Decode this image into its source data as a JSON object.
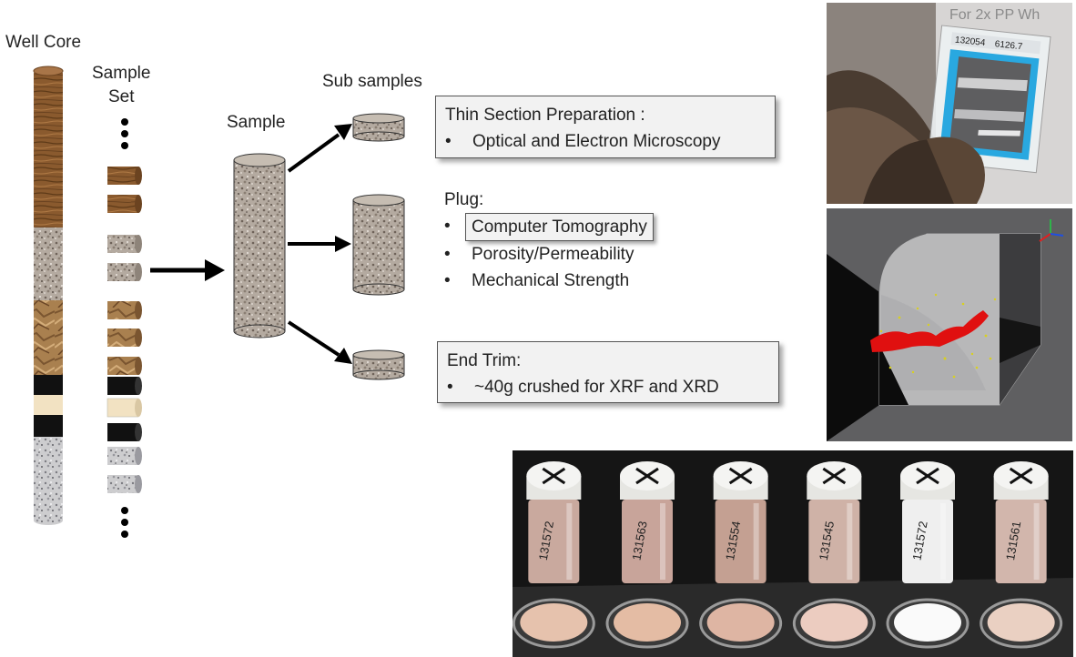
{
  "labels": {
    "well_core": "Well Core",
    "sample_set_line1": "Sample",
    "sample_set_line2": "Set",
    "sample": "Sample",
    "sub_samples": "Sub samples"
  },
  "thin_section": {
    "title": "Thin Section Preparation :",
    "items": [
      "Optical and Electron Microscopy"
    ]
  },
  "plug": {
    "title": "Plug:",
    "items": [
      "Computer Tomography",
      "Porosity/Permeability",
      "Mechanical Strength"
    ]
  },
  "end_trim": {
    "title": "End Trim:",
    "items": [
      "~40g crushed for XRF and XRD"
    ]
  },
  "bullet": "•",
  "photo_thin_section": {
    "overlay_text": "For 2x PP Wh",
    "slide_label_1": "132054",
    "slide_label_2": "6126.7"
  },
  "vial_labels": [
    "131572",
    "131563",
    "131554",
    "131545",
    "131572",
    "131561"
  ],
  "colors": {
    "brown_wood": "#8a5a2e",
    "gray_speckle": "#b0a79c",
    "tan_crumpled": "#a9804f",
    "black": "#111111",
    "cream": "#f2e2c2",
    "light_gray_speckle": "#c8c8ca",
    "ct_red": "#e01010",
    "slide_blue": "#29a8e0"
  }
}
